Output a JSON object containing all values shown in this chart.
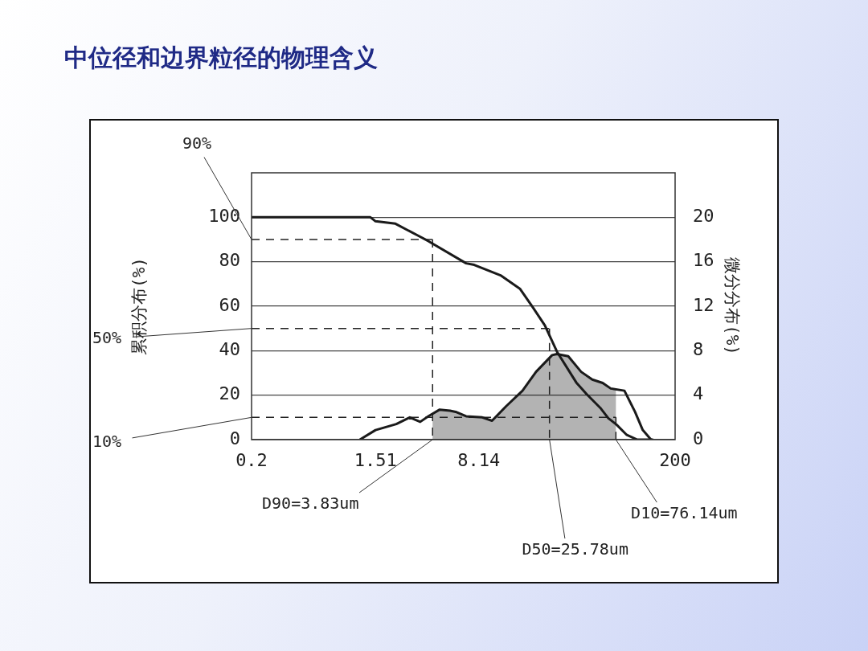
{
  "chart_data": {
    "type": "line",
    "title": "中位径和边界粒径的物理含义",
    "ylabel": "累积分布(%)",
    "y2label": "微分分布(%)",
    "log": "x",
    "xlim": [
      0.2,
      200
    ],
    "xticks": [
      0.2,
      1.51,
      8.14,
      200
    ],
    "ylim": [
      0,
      120
    ],
    "yticks": [
      0,
      20,
      40,
      60,
      80,
      100
    ],
    "y2lim": [
      0,
      24
    ],
    "y2ticks": [
      0,
      4,
      8,
      12,
      16,
      20
    ],
    "grid": "y",
    "marker": "none",
    "line_style": "solid",
    "series": [
      {
        "type": "line",
        "color": "#1a1a1a",
        "x": [
          0.2,
          1.39,
          1.51,
          2.09,
          3.01,
          3.57,
          6.62,
          7.55,
          11.6,
          15.9,
          19.6,
          23.9,
          29.1,
          39.9,
          47.3,
          59.0,
          67.3,
          76.7,
          91.0,
          108,
          140
        ],
        "values": [
          100,
          100,
          98.2,
          97.1,
          91.8,
          89.3,
          79.3,
          78.6,
          73.9,
          67.9,
          59.6,
          51.4,
          39.6,
          25.7,
          20.4,
          14.3,
          9.6,
          6.8,
          2.1,
          0,
          0
        ]
      },
      {
        "type": "area",
        "axis": "y2",
        "color": "#1a1a1a",
        "x": [
          1.17,
          1.51,
          2.12,
          2.64,
          3.13,
          3.57,
          4.3,
          5.09,
          5.58,
          6.62,
          8.61,
          10.1,
          12.7,
          16.6,
          20.7,
          26.9,
          29.1,
          35.0,
          43.2,
          51.8,
          61.4,
          70.0,
          87.5,
          104,
          118,
          135
        ],
        "values": [
          0,
          0.86,
          1.4,
          2.0,
          1.6,
          2.1,
          2.7,
          2.6,
          2.5,
          2.1,
          2.0,
          1.7,
          3.0,
          4.4,
          6.1,
          7.6,
          7.7,
          7.5,
          6.1,
          5.4,
          5.1,
          4.6,
          4.4,
          2.5,
          0.86,
          0
        ]
      }
    ],
    "ref_lines": [
      {
        "axis": "y",
        "value": 90,
        "label": "90%",
        "line_style": "dashed"
      },
      {
        "axis": "y",
        "value": 50,
        "label": "50%",
        "line_style": "dashed"
      },
      {
        "axis": "y",
        "value": 10,
        "label": "10%",
        "line_style": "dashed"
      },
      {
        "axis": "x",
        "value": 3.83,
        "label": "D90=3.83um",
        "line_style": "dashed"
      },
      {
        "axis": "x",
        "value": 25.78,
        "label": "D50=25.78um",
        "line_style": "dashed"
      },
      {
        "axis": "x",
        "value": 76.14,
        "label": "D10=76.14um",
        "line_style": "dashed"
      }
    ]
  }
}
